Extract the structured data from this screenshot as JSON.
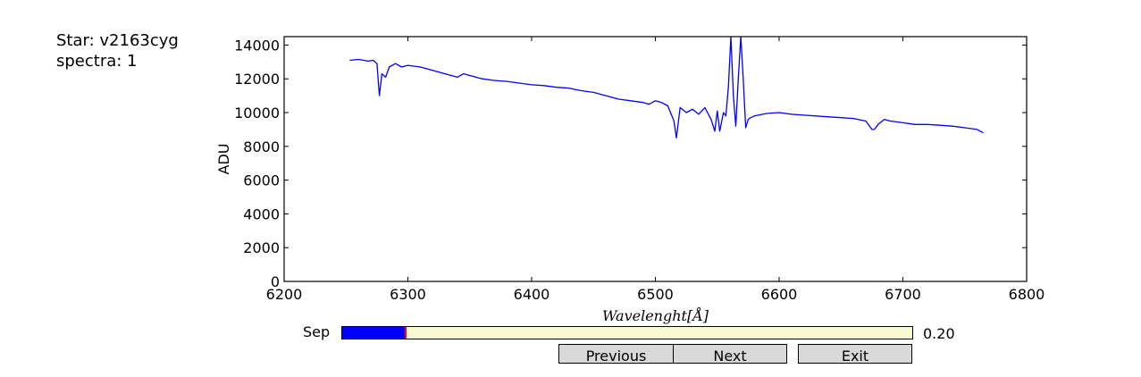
{
  "info": {
    "star_line": "Star: v2163cyg",
    "spectra_line": "spectra: 1"
  },
  "chart_data": {
    "type": "line",
    "title": "",
    "xlabel": "Wavelenght[Å]",
    "ylabel": "ADU",
    "xlim": [
      6200,
      6800
    ],
    "ylim": [
      0,
      14500
    ],
    "xticks": [
      "6200",
      "6300",
      "6400",
      "6500",
      "6600",
      "6700",
      "6800"
    ],
    "yticks": [
      "0",
      "2000",
      "4000",
      "6000",
      "8000",
      "10000",
      "12000",
      "14000"
    ],
    "grid": false,
    "series": [
      {
        "color": "#0000ff",
        "x": [
          6253,
          6260,
          6268,
          6272,
          6275,
          6277,
          6279,
          6282,
          6285,
          6290,
          6295,
          6300,
          6310,
          6320,
          6330,
          6340,
          6345,
          6350,
          6360,
          6370,
          6380,
          6390,
          6400,
          6410,
          6420,
          6430,
          6440,
          6450,
          6460,
          6470,
          6480,
          6490,
          6495,
          6500,
          6505,
          6510,
          6515,
          6517,
          6520,
          6525,
          6530,
          6535,
          6540,
          6545,
          6548,
          6550,
          6552,
          6555,
          6557,
          6559,
          6561,
          6563,
          6565,
          6567,
          6569,
          6571,
          6573,
          6575,
          6577,
          6580,
          6590,
          6600,
          6610,
          6620,
          6630,
          6640,
          6650,
          6660,
          6670,
          6675,
          6677,
          6680,
          6685,
          6690,
          6700,
          6710,
          6720,
          6730,
          6740,
          6750,
          6760,
          6765
        ],
        "y": [
          13100,
          13150,
          13050,
          13100,
          12900,
          11000,
          12300,
          12100,
          12700,
          12900,
          12700,
          12800,
          12700,
          12500,
          12300,
          12100,
          12300,
          12200,
          12000,
          11900,
          11850,
          11750,
          11650,
          11600,
          11500,
          11450,
          11300,
          11200,
          11000,
          10800,
          10700,
          10600,
          10500,
          10700,
          10600,
          10400,
          9500,
          8500,
          10300,
          10000,
          10200,
          9900,
          10300,
          9600,
          8900,
          10100,
          8900,
          10000,
          9800,
          11500,
          14500,
          11000,
          9200,
          12000,
          14500,
          12000,
          9100,
          9600,
          9700,
          9800,
          9950,
          10000,
          9900,
          9850,
          9800,
          9750,
          9700,
          9650,
          9500,
          9000,
          9000,
          9300,
          9600,
          9500,
          9400,
          9300,
          9300,
          9250,
          9200,
          9100,
          9000,
          8800
        ]
      }
    ]
  },
  "controls": {
    "slider_label": "Sep",
    "slider_value": 0.2,
    "slider_value_text": "0.20",
    "previous_label": "Previous",
    "next_label": "Next",
    "exit_label": "Exit"
  }
}
